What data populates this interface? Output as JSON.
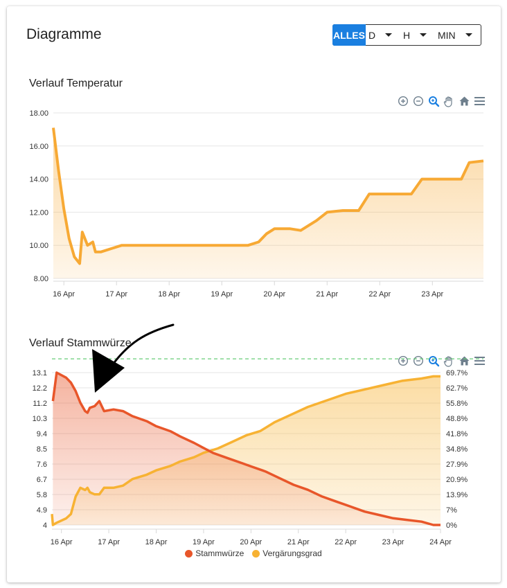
{
  "card": {
    "title": "Diagramme",
    "range_buttons": [
      {
        "label": "ALLES",
        "active": true
      },
      {
        "label": "D",
        "active": false
      },
      {
        "label": "H",
        "active": false
      },
      {
        "label": "MIN",
        "active": false
      }
    ]
  },
  "colors": {
    "temperature": "#f7a934",
    "stammwuerze": "#e8562a",
    "vergaerungsgrad": "#f7b233",
    "accent": "#1a7fe0",
    "target_line": "#66cc77",
    "toolbar_icon": "#6e7f8d",
    "toolbar_icon_active": "#1a7fe0"
  },
  "toolbar_icons": [
    "zoom-in-icon",
    "zoom-out-icon",
    "selection-zoom-icon",
    "pan-hand-icon",
    "reset-home-icon",
    "menu-icon"
  ],
  "chart_data": [
    {
      "type": "area",
      "title": "Verlauf Temperatur",
      "xlabel": "",
      "ylabel": "",
      "ylim": [
        8,
        18
      ],
      "xlim": [
        15.8,
        23.97
      ],
      "x_tick_labels": [
        "16 Apr",
        "17 Apr",
        "18 Apr",
        "19 Apr",
        "20 Apr",
        "21 Apr",
        "22 Apr",
        "23 Apr"
      ],
      "y_tick_labels": [
        "18.00",
        "16.00",
        "14.00",
        "12.00",
        "10.00",
        "8.00"
      ],
      "grid": true,
      "series": [
        {
          "x": [
            15.8,
            15.9,
            16.0,
            16.1,
            16.2,
            16.3,
            16.35,
            16.45,
            16.55,
            16.6,
            16.7,
            16.9,
            17.1,
            17.3,
            17.6,
            18.0,
            18.5,
            19.0,
            19.5,
            19.7,
            19.85,
            20.0,
            20.3,
            20.5,
            20.8,
            21.0,
            21.3,
            21.45,
            21.6,
            21.8,
            22.0,
            22.2,
            22.4,
            22.5,
            22.6,
            22.8,
            23.0,
            23.2,
            23.45,
            23.55,
            23.7,
            23.97
          ],
          "y": [
            17.1,
            14.5,
            12.2,
            10.4,
            9.3,
            8.9,
            10.8,
            10.0,
            10.2,
            9.6,
            9.6,
            9.8,
            10.0,
            10.0,
            10.0,
            10.0,
            10.0,
            10.0,
            10.0,
            10.2,
            10.7,
            11.0,
            11.0,
            10.9,
            11.5,
            12.0,
            12.1,
            12.1,
            12.1,
            13.1,
            13.1,
            13.1,
            13.1,
            13.1,
            13.1,
            14.0,
            14.0,
            14.0,
            14.0,
            14.0,
            15.0,
            15.1
          ]
        }
      ]
    },
    {
      "type": "area",
      "title": "Verlauf Stammwürze",
      "xlabel": "",
      "ylabel": "",
      "ylim_left": [
        4,
        13.1
      ],
      "ylim_right": [
        0,
        69.7
      ],
      "xlim": [
        15.8,
        24.0
      ],
      "x_tick_labels": [
        "16 Apr",
        "17 Apr",
        "18 Apr",
        "19 Apr",
        "20 Apr",
        "21 Apr",
        "22 Apr",
        "23 Apr",
        "24 Apr"
      ],
      "y_left_tick_labels": [
        "13.1",
        "12.2",
        "11.2",
        "10.3",
        "9.4",
        "8.5",
        "7.6",
        "6.7",
        "5.8",
        "4.9",
        "4"
      ],
      "y_right_tick_labels": [
        "69.7%",
        "62.7%",
        "55.8%",
        "48.8%",
        "41.8%",
        "34.8%",
        "27.9%",
        "20.9%",
        "13.9%",
        "7%",
        "0%"
      ],
      "target_line_y_percent": 76,
      "grid": true,
      "legend_position": "bottom-center",
      "legend": [
        "Stammwürze",
        "Vergärungsgrad"
      ],
      "series": [
        {
          "name": "Stammwürze",
          "axis": "left",
          "x": [
            15.82,
            15.9,
            16.1,
            16.2,
            16.3,
            16.4,
            16.5,
            16.55,
            16.6,
            16.7,
            16.8,
            16.9,
            17.1,
            17.3,
            17.5,
            17.8,
            18.0,
            18.3,
            18.5,
            18.8,
            19.0,
            19.2,
            19.5,
            19.8,
            20.0,
            20.3,
            20.6,
            20.9,
            21.2,
            21.5,
            21.8,
            22.1,
            22.4,
            22.7,
            23.0,
            23.3,
            23.6,
            23.85,
            24.0
          ],
          "y": [
            11.4,
            13.1,
            12.8,
            12.5,
            12.0,
            11.3,
            10.8,
            10.7,
            11.0,
            11.1,
            11.4,
            10.8,
            10.9,
            10.8,
            10.5,
            10.2,
            9.9,
            9.6,
            9.3,
            8.9,
            8.6,
            8.3,
            8.0,
            7.7,
            7.5,
            7.2,
            6.8,
            6.4,
            6.1,
            5.7,
            5.4,
            5.1,
            4.8,
            4.6,
            4.4,
            4.3,
            4.2,
            4.0,
            4.0
          ]
        },
        {
          "name": "Vergärungsgrad",
          "axis": "right",
          "x": [
            15.8,
            15.82,
            15.9,
            16.1,
            16.2,
            16.3,
            16.4,
            16.5,
            16.55,
            16.6,
            16.7,
            16.8,
            16.9,
            17.1,
            17.3,
            17.5,
            17.8,
            18.0,
            18.3,
            18.5,
            18.8,
            19.0,
            19.3,
            19.6,
            19.9,
            20.2,
            20.5,
            20.8,
            21.2,
            21.6,
            22.0,
            22.4,
            22.8,
            23.2,
            23.6,
            23.85,
            24.0
          ],
          "y": [
            5,
            0,
            1,
            3,
            5,
            13,
            17,
            16,
            17,
            15,
            14,
            14,
            17,
            17,
            18,
            21,
            23,
            25,
            27,
            29,
            31,
            33,
            35,
            38,
            41,
            43,
            47,
            50,
            54,
            57,
            60,
            62,
            64,
            66,
            67,
            68,
            68
          ]
        }
      ]
    }
  ]
}
